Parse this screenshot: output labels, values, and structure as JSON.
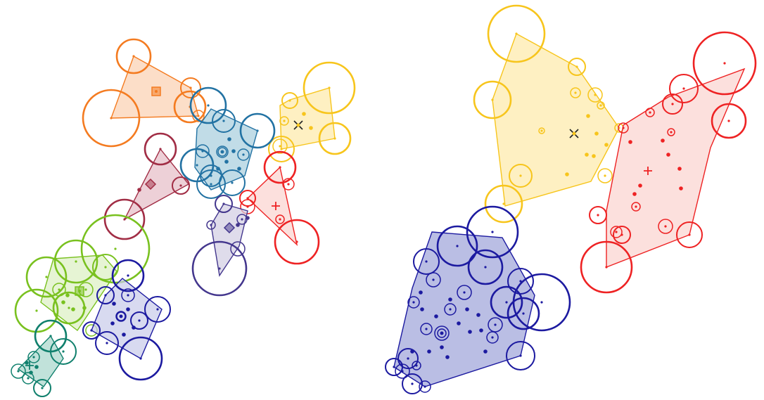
{
  "panels": [
    {
      "id": "left",
      "clusters": [
        {
          "name": "orange",
          "color": "#f47b20",
          "fill": "#fbd0b0",
          "marker": "square",
          "hull": [
            [
              190,
              80
            ],
            [
              271,
              125
            ],
            [
              282,
              165
            ],
            [
              158,
              168
            ]
          ],
          "centroid": [
            222,
            130
          ],
          "circles": [
            [
              190,
              80,
              24
            ],
            [
              271,
              125,
              14
            ],
            [
              158,
              168,
              40
            ],
            [
              270,
              152,
              22
            ],
            [
              282,
              165,
              8
            ]
          ],
          "dots": []
        },
        {
          "name": "yellow",
          "color": "#f7c51c",
          "fill": "#fde9a8",
          "marker": "x",
          "hull": [
            [
              468,
              125
            ],
            [
              476,
              197
            ],
            [
              400,
              212
            ],
            [
              398,
              150
            ],
            [
              412,
              142
            ]
          ],
          "centroid": [
            424,
            178
          ],
          "circles": [
            [
              468,
              125,
              36
            ],
            [
              476,
              197,
              22
            ],
            [
              412,
              143,
              11
            ],
            [
              400,
              212,
              18
            ],
            [
              398,
              208,
              10
            ],
            [
              404,
              172,
              6
            ]
          ],
          "dots": [
            [
              432,
              162
            ],
            [
              442,
              182
            ]
          ]
        },
        {
          "name": "teal",
          "color": "#2272a3",
          "fill": "#a6cddd",
          "marker": "circle",
          "hull": [
            [
              300,
              155
            ],
            [
              366,
              186
            ],
            [
              348,
              250
            ],
            [
              300,
              270
            ],
            [
              277,
              238
            ],
            [
              280,
              183
            ]
          ],
          "centroid": [
            316,
            216
          ],
          "circles": [
            [
              296,
              150,
              25
            ],
            [
              318,
              172,
              16
            ],
            [
              280,
              235,
              23
            ],
            [
              300,
              250,
              15
            ],
            [
              366,
              186,
              24
            ],
            [
              330,
              260,
              18
            ],
            [
              300,
              262,
              20
            ],
            [
              316,
              216,
              8
            ],
            [
              288,
              215,
              9
            ],
            [
              346,
              220,
              8
            ]
          ],
          "dots": [
            [
              322,
              230
            ],
            [
              332,
              215
            ],
            [
              310,
              240
            ],
            [
              340,
              240
            ],
            [
              326,
              198
            ]
          ]
        },
        {
          "name": "maroon",
          "color": "#a12d45",
          "fill": "#e5bcc6",
          "marker": "diamond",
          "hull": [
            [
              228,
              212
            ],
            [
              268,
              262
            ],
            [
              177,
              312
            ]
          ],
          "centroid": [
            214,
            262
          ],
          "circles": [
            [
              228,
              212,
              22
            ],
            [
              177,
              312,
              28
            ],
            [
              257,
              264,
              12
            ]
          ],
          "dots": [
            [
              198,
              270
            ]
          ]
        },
        {
          "name": "red",
          "color": "#ee2223",
          "fill": "#fbd3cf",
          "marker": "plus",
          "hull": [
            [
              398,
              238
            ],
            [
              422,
              348
            ],
            [
              352,
              282
            ]
          ],
          "centroid": [
            392,
            293
          ],
          "circles": [
            [
              398,
              238,
              22
            ],
            [
              422,
              344,
              31
            ],
            [
              352,
              282,
              11
            ],
            [
              352,
              294,
              10
            ],
            [
              410,
              262,
              8
            ],
            [
              398,
              312,
              6
            ]
          ],
          "dots": []
        },
        {
          "name": "purple",
          "color": "#43368d",
          "fill": "#d1cde3",
          "marker": "diamond",
          "hull": [
            [
              318,
              290
            ],
            [
              352,
              300
            ],
            [
              340,
              350
            ],
            [
              312,
              392
            ],
            [
              300,
              320
            ]
          ],
          "centroid": [
            326,
            324
          ],
          "circles": [
            [
              312,
              382,
              38
            ],
            [
              318,
              290,
              12
            ],
            [
              338,
              354,
              10
            ],
            [
              344,
              312,
              7
            ],
            [
              300,
              320,
              6
            ]
          ],
          "dots": [
            [
              352,
              310
            ],
            [
              338,
              320
            ]
          ]
        },
        {
          "name": "green",
          "color": "#79c11f",
          "fill": "#dcefc2",
          "marker": "square",
          "hull": [
            [
              76,
              368
            ],
            [
              146,
              363
            ],
            [
              166,
              386
            ],
            [
              110,
              470
            ],
            [
              58,
              430
            ]
          ],
          "centroid": [
            113,
            414
          ],
          "circles": [
            [
              164,
              354,
              48
            ],
            [
              108,
              372,
              30
            ],
            [
              66,
              394,
              28
            ],
            [
              52,
              442,
              30
            ],
            [
              98,
              438,
              22
            ],
            [
              150,
              380,
              18
            ],
            [
              122,
              412,
              10
            ],
            [
              84,
              412,
              9
            ],
            [
              130,
              470,
              8
            ]
          ],
          "dots": [
            [
              90,
              430
            ],
            [
              104,
              440
            ],
            [
              120,
              438
            ],
            [
              96,
              420
            ]
          ]
        },
        {
          "name": "blue-small",
          "color": "#1c1aa0",
          "fill": "#c8cbea",
          "marker": "circle",
          "hull": [
            [
              174,
              396
            ],
            [
              230,
              440
            ],
            [
              200,
              510
            ],
            [
              130,
              470
            ],
            [
              150,
              420
            ]
          ],
          "centroid": [
            172,
            450
          ],
          "circles": [
            [
              182,
              392,
              22
            ],
            [
              150,
              420,
              12
            ],
            [
              224,
              440,
              18
            ],
            [
              200,
              510,
              30
            ],
            [
              152,
              488,
              16
            ],
            [
              130,
              470,
              12
            ],
            [
              198,
              456,
              12
            ],
            [
              182,
              420,
              9
            ],
            [
              172,
              450,
              7
            ]
          ],
          "dots": [
            [
              162,
              432
            ],
            [
              182,
              440
            ],
            [
              190,
              466
            ],
            [
              160,
              460
            ],
            [
              176,
              476
            ]
          ]
        },
        {
          "name": "darkgreen",
          "color": "#10806d",
          "fill": "#a6d6cb",
          "marker": "plus",
          "hull": [
            [
              26,
              525
            ],
            [
              72,
              478
            ],
            [
              90,
              510
            ],
            [
              62,
              550
            ]
          ],
          "centroid": [
            42,
            520
          ],
          "circles": [
            [
              72,
              478,
              22
            ],
            [
              90,
              500,
              18
            ],
            [
              60,
              552,
              12
            ],
            [
              26,
              528,
              10
            ],
            [
              48,
              508,
              8
            ],
            [
              40,
              538,
              8
            ]
          ],
          "dots": [
            [
              38,
              516
            ],
            [
              52,
              522
            ],
            [
              44,
              530
            ]
          ]
        }
      ]
    },
    {
      "id": "right",
      "clusters": [
        {
          "name": "yellow",
          "color": "#f7c51c",
          "fill": "#fde9a8",
          "marker": "x",
          "hull": [
            [
              734,
              48
            ],
            [
              820,
              95
            ],
            [
              880,
              182
            ],
            [
              840,
              258
            ],
            [
              718,
              293
            ],
            [
              700,
              142
            ]
          ],
          "centroid": [
            816,
            190
          ],
          "circles": [
            [
              734,
              48,
              40
            ],
            [
              700,
              142,
              26
            ],
            [
              820,
              95,
              12
            ],
            [
              846,
              135,
              10
            ],
            [
              880,
              182,
              6
            ],
            [
              860,
              250,
              10
            ],
            [
              740,
              250,
              16
            ],
            [
              716,
              290,
              26
            ],
            [
              818,
              132,
              7
            ],
            [
              770,
              186,
              4
            ],
            [
              854,
              150,
              5
            ]
          ],
          "dots": [
            [
              836,
              165
            ],
            [
              848,
              190
            ],
            [
              834,
              220
            ],
            [
              806,
              248
            ],
            [
              862,
              206
            ],
            [
              844,
              222
            ]
          ]
        },
        {
          "name": "red",
          "color": "#ee2223",
          "fill": "#fbd3cf",
          "marker": "plus",
          "hull": [
            [
              1058,
              98
            ],
            [
              1010,
              210
            ],
            [
              980,
              334
            ],
            [
              862,
              380
            ],
            [
              862,
              300
            ],
            [
              886,
              178
            ],
            [
              950,
              138
            ]
          ],
          "centroid": [
            921,
            243
          ],
          "circles": [
            [
              1030,
              90,
              44
            ],
            [
              972,
              126,
              20
            ],
            [
              956,
              148,
              14
            ],
            [
              1036,
              172,
              24
            ],
            [
              862,
              380,
              36
            ],
            [
              850,
              306,
              12
            ],
            [
              884,
              334,
              12
            ],
            [
              876,
              330,
              8
            ],
            [
              980,
              334,
              18
            ],
            [
              946,
              322,
              10
            ],
            [
              886,
              182,
              7
            ],
            [
              924,
              160,
              6
            ],
            [
              954,
              188,
              5
            ],
            [
              904,
              294,
              6
            ]
          ],
          "dots": [
            [
              942,
              200
            ],
            [
              966,
              240
            ],
            [
              950,
              220
            ],
            [
              902,
              276
            ],
            [
              968,
              268
            ],
            [
              896,
              202
            ],
            [
              910,
              264
            ]
          ]
        },
        {
          "name": "blue",
          "color": "#1c1aa0",
          "fill": "#9ca2d9",
          "marker": "circle",
          "hull": [
            [
              614,
              330
            ],
            [
              714,
              338
            ],
            [
              760,
              420
            ],
            [
              740,
              506
            ],
            [
              604,
              550
            ],
            [
              560,
              522
            ],
            [
              586,
              410
            ]
          ],
          "centroid": [
            628,
            474
          ],
          "circles": [
            [
              700,
              330,
              36
            ],
            [
              650,
              350,
              28
            ],
            [
              690,
              380,
              24
            ],
            [
              740,
              400,
              18
            ],
            [
              770,
              430,
              40
            ],
            [
              720,
              430,
              22
            ],
            [
              744,
              446,
              22
            ],
            [
              660,
              416,
              10
            ],
            [
              640,
              440,
              8
            ],
            [
              704,
              462,
              10
            ],
            [
              606,
              372,
              18
            ],
            [
              616,
              398,
              10
            ],
            [
              588,
              430,
              8
            ],
            [
              628,
              474,
              10
            ],
            [
              606,
              468,
              8
            ],
            [
              740,
              506,
              20
            ],
            [
              700,
              480,
              8
            ],
            [
              580,
              510,
              14
            ],
            [
              560,
              522,
              12
            ],
            [
              586,
              546,
              14
            ],
            [
              604,
              550,
              8
            ],
            [
              572,
              528,
              10
            ],
            [
              592,
              520,
              6
            ]
          ],
          "dots": [
            [
              664,
              440
            ],
            [
              652,
              460
            ],
            [
              680,
              448
            ],
            [
              640,
              426
            ],
            [
              620,
              450
            ],
            [
              684,
              470
            ],
            [
              600,
              440
            ],
            [
              668,
              472
            ],
            [
              628,
              494
            ],
            [
              610,
              500
            ],
            [
              690,
              500
            ],
            [
              636,
              508
            ],
            [
              598,
              416
            ],
            [
              586,
              500
            ]
          ]
        }
      ]
    }
  ]
}
